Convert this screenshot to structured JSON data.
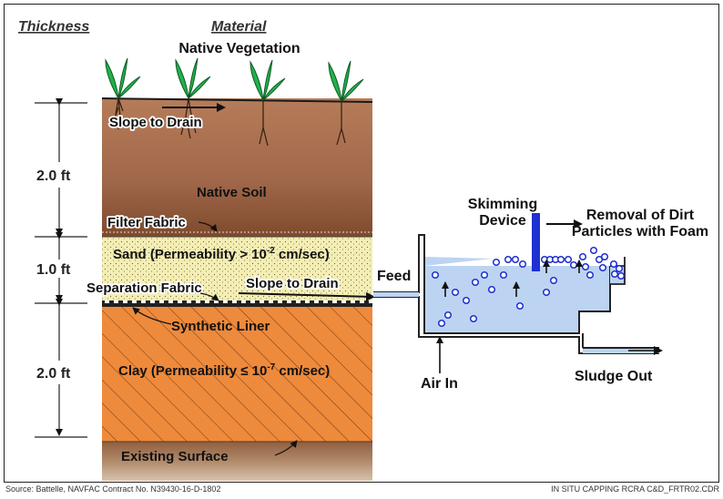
{
  "headers": {
    "thickness": "Thickness",
    "material": "Material"
  },
  "layers": {
    "vegetation": "Native Vegetation",
    "slope_top": "Slope to Drain",
    "native_soil": "Native Soil",
    "filter_fabric": "Filter Fabric",
    "sand_prefix": "Sand (Permeability > 10",
    "sand_exp": "-2",
    "sand_suffix": " cm/sec)",
    "separation": "Separation Fabric",
    "slope_mid": "Slope to Drain",
    "synthetic": "Synthetic Liner",
    "clay_prefix": "Clay (Permeability ≤ 10",
    "clay_exp": "-7",
    "clay_suffix": " cm/sec)",
    "existing": "Existing Surface"
  },
  "dimensions": {
    "top": "2.0 ft",
    "mid": "1.0 ft",
    "bottom": "2.0 ft"
  },
  "tank": {
    "skimming_1": "Skimming",
    "skimming_2": "Device",
    "removal_1": "Removal of Dirt",
    "removal_2": "Particles with Foam",
    "feed": "Feed",
    "air_in": "Air In",
    "sludge_out": "Sludge Out"
  },
  "footer": {
    "source": "Source: Battelle, NAVFAC Contract No. N39430-16-D-1802",
    "doc_id": "IN SITU CAPPING RCRA C&D_FRTR02.CDR"
  },
  "colors": {
    "soil": "#a0674a",
    "sand": "#f4eeb4",
    "clay": "#ee8a3c",
    "water": "#bcd4f2",
    "skimmer": "#1f2fd0",
    "plant": "#22b14c"
  }
}
